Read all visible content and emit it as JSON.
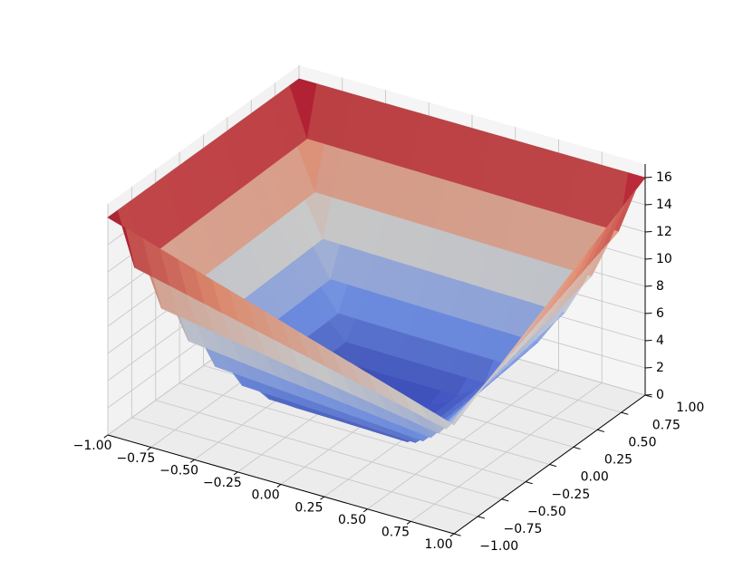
{
  "chart_data": {
    "type": "surface",
    "title": "",
    "xlabel": "",
    "ylabel": "",
    "zlabel": "",
    "colormap": "coolwarm",
    "grid": true,
    "pane_color": "#f2f2f2",
    "grid_color": "#c8c8c8",
    "xlim": [
      -1.0,
      1.0
    ],
    "ylim": [
      -1.0,
      1.0
    ],
    "zlim": [
      0,
      17
    ],
    "x_ticks": [
      -1.0,
      -0.75,
      -0.5,
      -0.25,
      0.0,
      0.25,
      0.5,
      0.75,
      1.0
    ],
    "y_ticks": [
      -1.0,
      -0.75,
      -0.5,
      -0.25,
      0.0,
      0.25,
      0.5,
      0.75,
      1.0
    ],
    "z_ticks": [
      0,
      2,
      4,
      6,
      8,
      10,
      12,
      14,
      16
    ],
    "x_tick_labels": [
      "−1.00",
      "−0.75",
      "−0.50",
      "−0.25",
      "0.00",
      "0.25",
      "0.50",
      "0.75",
      "1.00"
    ],
    "y_tick_labels": [
      "−1.00",
      "−0.75",
      "−0.50",
      "−0.25",
      "0.00",
      "0.25",
      "0.50",
      "0.75",
      "1.00"
    ],
    "z_tick_labels": [
      "0",
      "2",
      "4",
      "6",
      "8",
      "10",
      "12",
      "14",
      "16"
    ],
    "grid_n": 20,
    "z_corners": {
      "x-1_y-1": 16,
      "x1_y-1": 8,
      "x-1_y1": 16,
      "x1_y1": 16
    },
    "z_center": 0.2
  }
}
